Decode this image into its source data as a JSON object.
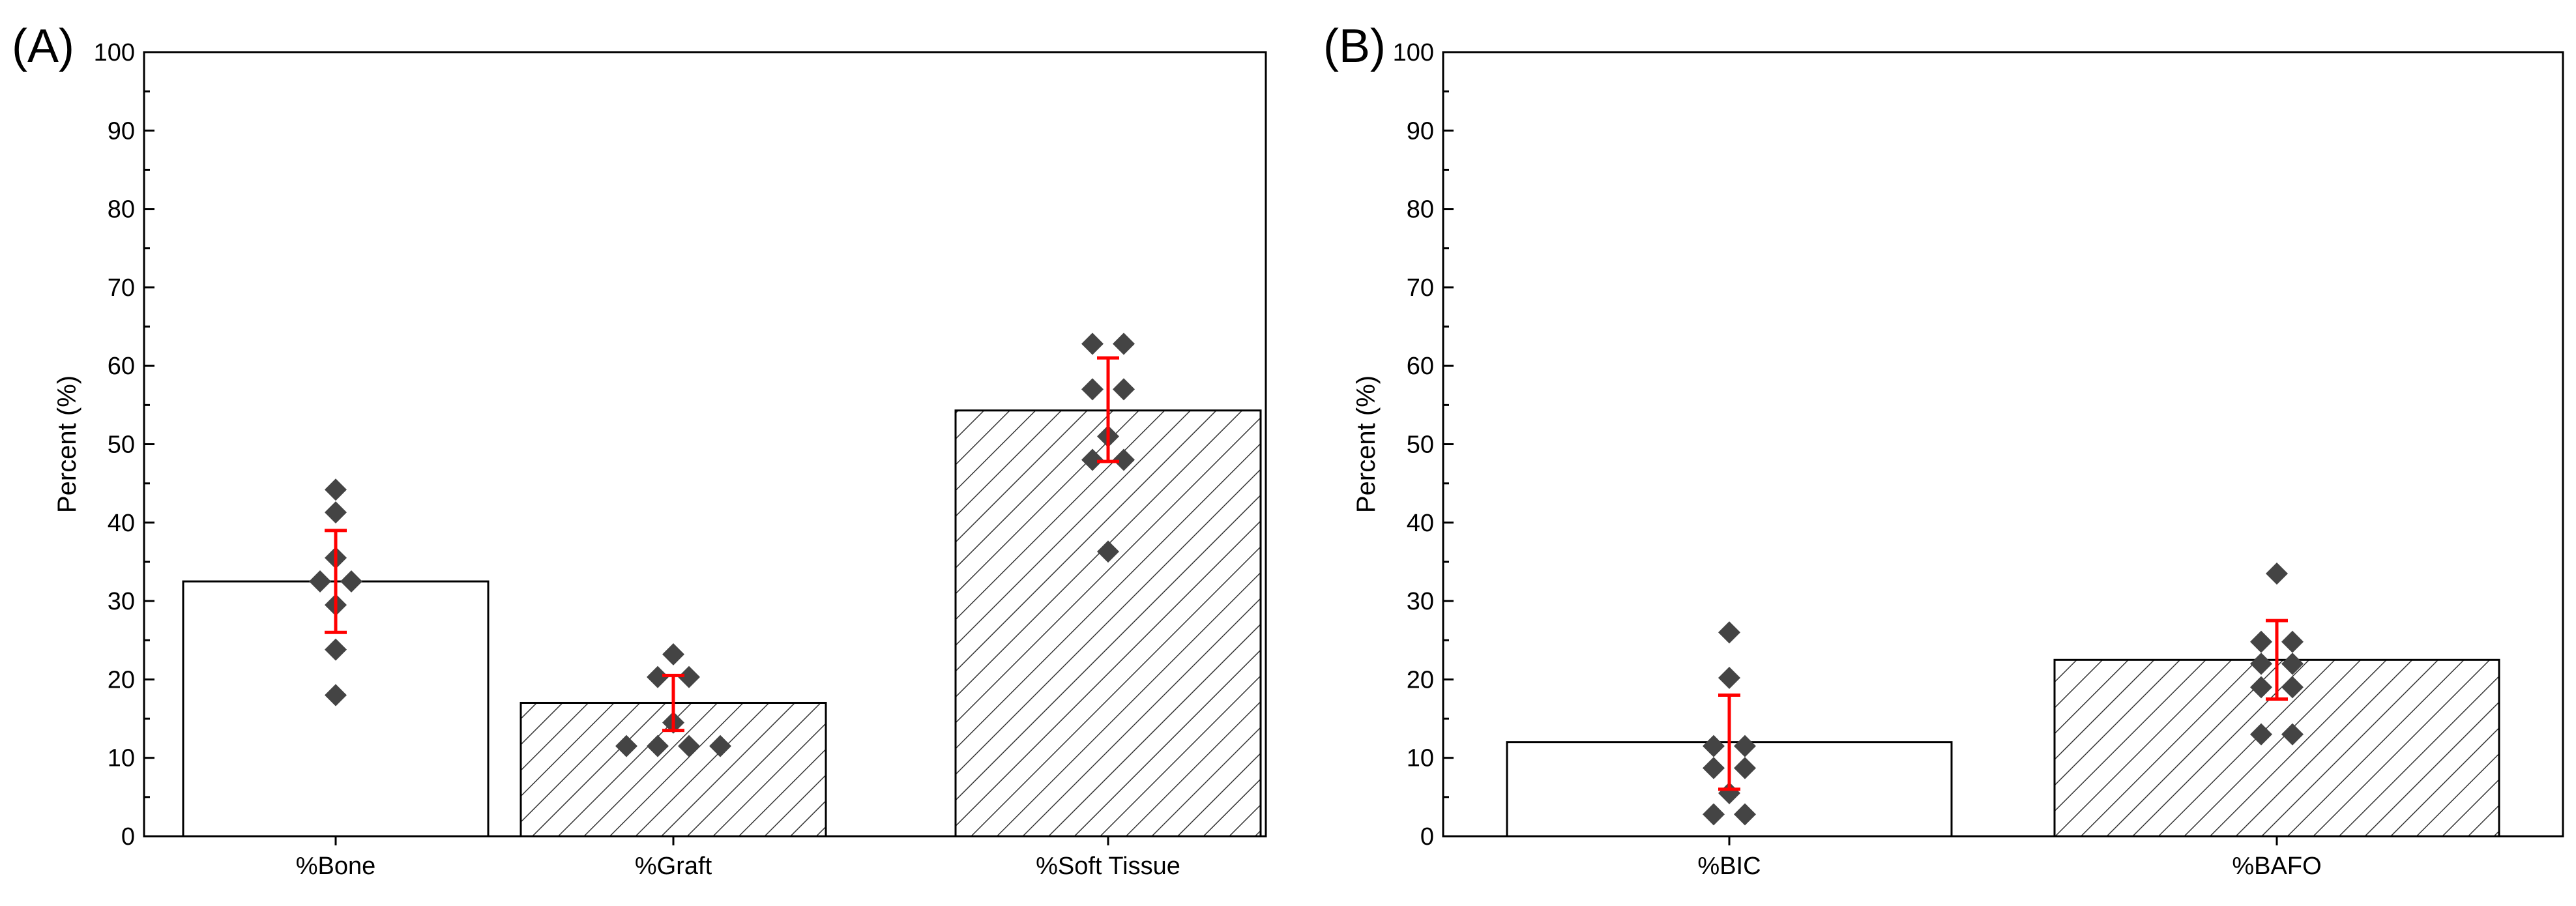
{
  "chart_data": [
    {
      "type": "bar",
      "panel_label": "(A)",
      "ylabel": "Percent (%)",
      "xlabel": "",
      "ylim": [
        0,
        100
      ],
      "yticks": [
        "0",
        "10",
        "20",
        "30",
        "40",
        "50",
        "60",
        "70",
        "80",
        "90",
        "100"
      ],
      "categories": [
        "%Bone",
        "%Graft",
        "%Soft Tissue"
      ],
      "values": [
        32.5,
        17.0,
        54.3
      ],
      "error_low": [
        26.0,
        13.5,
        47.8
      ],
      "error_high": [
        39.0,
        20.5,
        61.0
      ],
      "patterns": [
        "none",
        "hatch",
        "hatch"
      ],
      "points": [
        [
          18.0,
          23.8,
          29.5,
          32.5,
          32.5,
          35.5,
          41.3,
          44.2
        ],
        [
          11.5,
          11.5,
          11.5,
          11.5,
          14.5,
          20.3,
          20.3,
          23.2
        ],
        [
          36.3,
          48.0,
          48.0,
          51.0,
          57.0,
          57.0,
          62.8,
          62.8
        ]
      ]
    },
    {
      "type": "bar",
      "panel_label": "(B)",
      "ylabel": "Percent (%)",
      "xlabel": "",
      "ylim": [
        0,
        100
      ],
      "yticks": [
        "0",
        "10",
        "20",
        "30",
        "40",
        "50",
        "60",
        "70",
        "80",
        "90",
        "100"
      ],
      "categories": [
        "%BIC",
        "%BAFO"
      ],
      "values": [
        12.0,
        22.5
      ],
      "error_low": [
        6.0,
        17.5
      ],
      "error_high": [
        18.0,
        27.5
      ],
      "patterns": [
        "none",
        "hatch"
      ],
      "points": [
        [
          2.8,
          2.8,
          5.5,
          8.7,
          8.7,
          11.5,
          11.5,
          20.2,
          26.0
        ],
        [
          13.0,
          13.0,
          19.0,
          19.0,
          22.0,
          22.0,
          24.8,
          24.8,
          33.5
        ]
      ]
    }
  ],
  "colors": {
    "bar_fill": "#ffffff",
    "bar_stroke": "#000000",
    "hatch": "#333333",
    "point": "#444444",
    "error_bar": "#ff0000"
  }
}
